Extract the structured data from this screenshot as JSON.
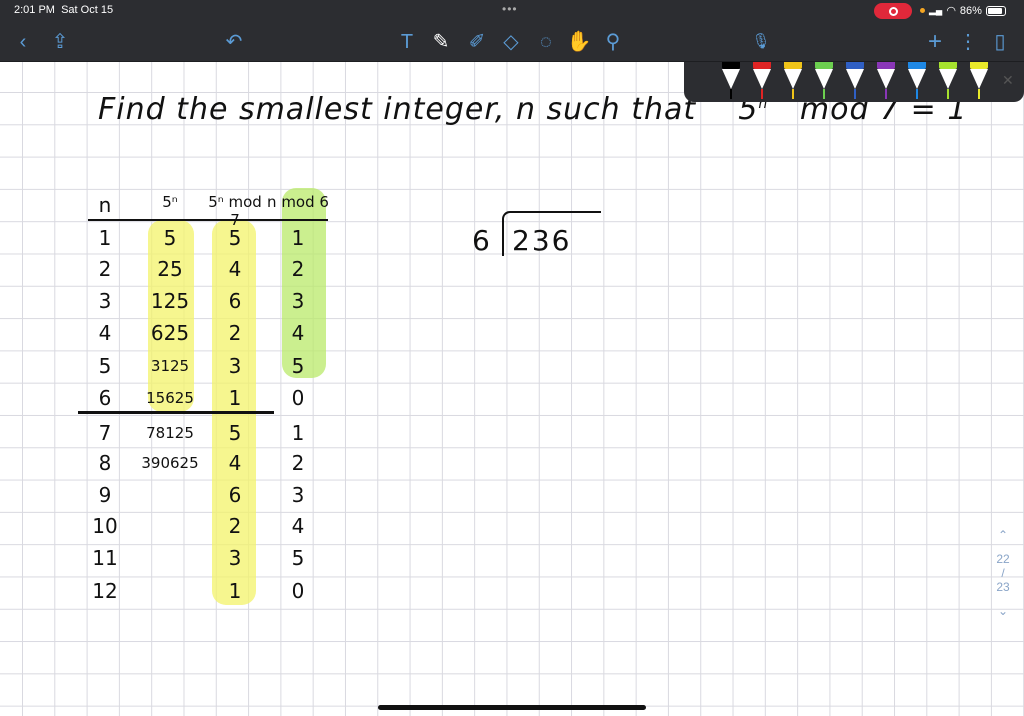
{
  "status_bar": {
    "time": "2:01 PM",
    "date": "Sat Oct 15",
    "battery": "86%",
    "battery_level": 0.86
  },
  "toolbar": {
    "left": [
      {
        "icon": "back-chevron-icon",
        "glyph": "‹"
      },
      {
        "icon": "share-icon",
        "glyph": "⇪"
      },
      {
        "icon": "undo-icon",
        "glyph": "↶"
      }
    ],
    "tools": [
      {
        "icon": "text-tool-icon",
        "glyph": "T"
      },
      {
        "icon": "pen-tool-icon",
        "glyph": "✎"
      },
      {
        "icon": "highlighter-tool-icon",
        "glyph": "✐"
      },
      {
        "icon": "eraser-tool-icon",
        "glyph": "◇"
      },
      {
        "icon": "lasso-tool-icon",
        "glyph": "◌"
      },
      {
        "icon": "shapes-tool-icon",
        "glyph": "✋"
      },
      {
        "icon": "laser-pointer-icon",
        "glyph": "⚲"
      }
    ],
    "right": [
      {
        "icon": "microphone-icon",
        "glyph": "🎙"
      },
      {
        "icon": "add-icon",
        "glyph": "+"
      },
      {
        "icon": "more-icon",
        "glyph": "⋮"
      },
      {
        "icon": "pages-icon",
        "glyph": "▯"
      }
    ]
  },
  "pen_colors": [
    "#000000",
    "#e02424",
    "#f0c419",
    "#6ccf4f",
    "#2f5fc4",
    "#8a36b8",
    "#1e88e5",
    "#a6e22e",
    "#e9ea2a"
  ],
  "note": {
    "title_parts": [
      "Find the smallest integer, n such that",
      "5",
      "mod 7 = 1"
    ],
    "title_exponent": "n",
    "division": {
      "divisor": "6",
      "dividend": "236"
    },
    "table": {
      "headers": [
        "n",
        "5ⁿ",
        "5ⁿ mod 7",
        "n mod 6"
      ],
      "rows": [
        [
          "1",
          "5",
          "5",
          "1"
        ],
        [
          "2",
          "25",
          "4",
          "2"
        ],
        [
          "3",
          "125",
          "6",
          "3"
        ],
        [
          "4",
          "625",
          "2",
          "4"
        ],
        [
          "5",
          "3125",
          "3",
          "5"
        ],
        [
          "6",
          "15625",
          "1",
          "0"
        ],
        [
          "7",
          "78125",
          "5",
          "1"
        ],
        [
          "8",
          "390625",
          "4",
          "2"
        ],
        [
          "9",
          "",
          "6",
          "3"
        ],
        [
          "10",
          "",
          "2",
          "4"
        ],
        [
          "11",
          "",
          "3",
          "5"
        ],
        [
          "12",
          "",
          "1",
          "0"
        ]
      ]
    },
    "highlight_yellow": "#f3f36a",
    "highlight_green": "#b9ea6a"
  },
  "page_indicator": {
    "current": "22",
    "separator": "/",
    "total": "23"
  }
}
